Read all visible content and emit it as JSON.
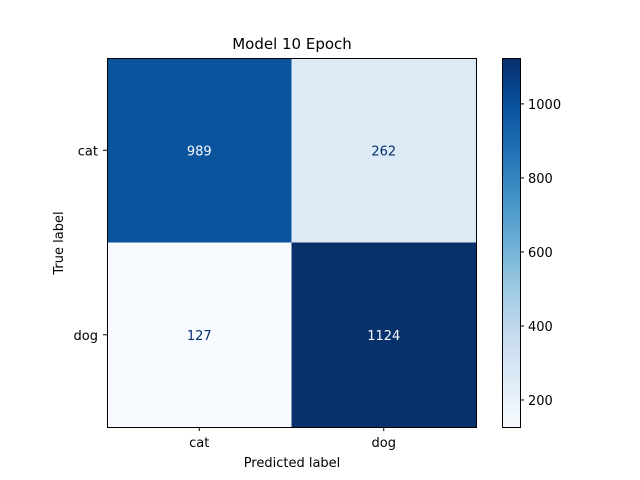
{
  "chart_data": {
    "type": "heatmap",
    "title": "Model 10 Epoch",
    "xlabel": "Predicted label",
    "ylabel": "True label",
    "x_categories": [
      "cat",
      "dog"
    ],
    "y_categories": [
      "cat",
      "dog"
    ],
    "values": [
      [
        989,
        262
      ],
      [
        127,
        1124
      ]
    ],
    "colormap": "Blues",
    "vmin": 127,
    "vmax": 1124,
    "colorbar_ticks": [
      200,
      400,
      600,
      800,
      1000
    ],
    "grid": false
  }
}
